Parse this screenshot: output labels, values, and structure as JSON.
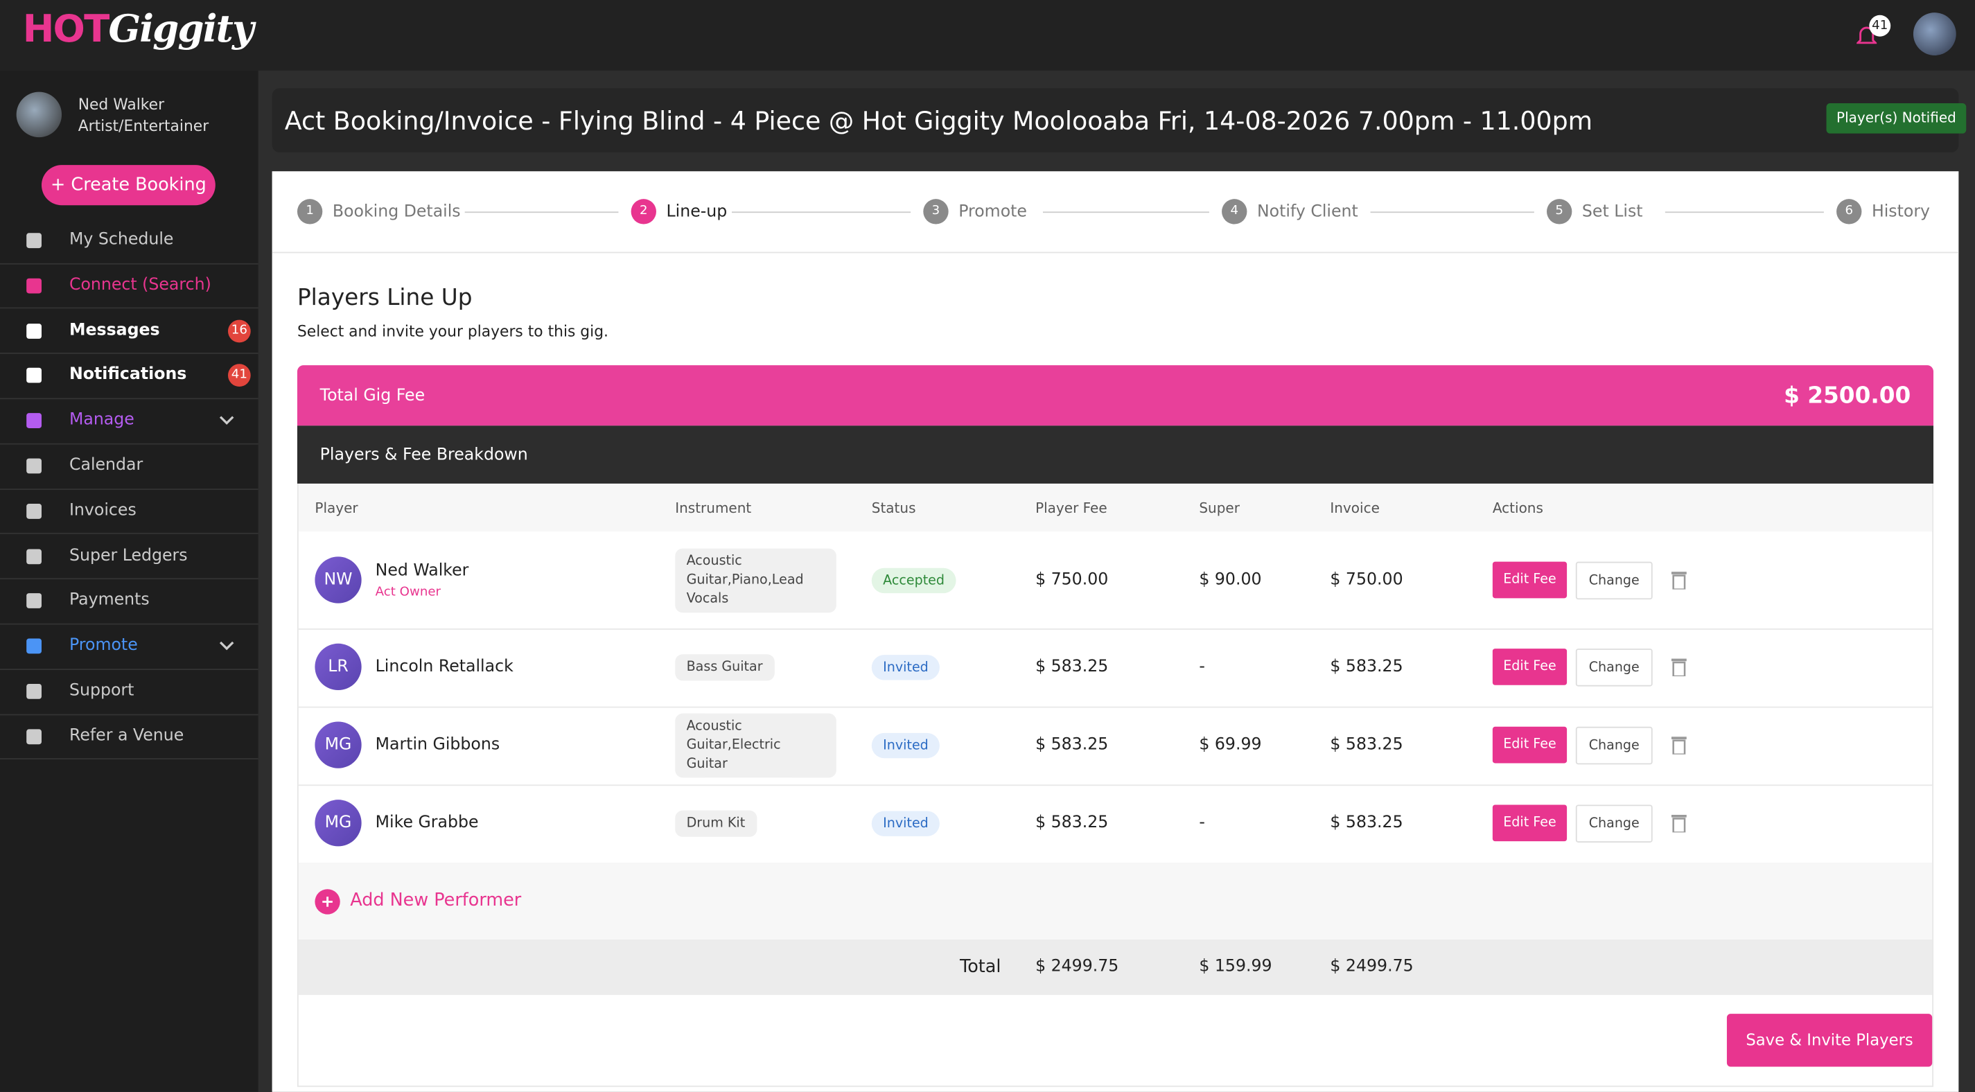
{
  "header": {
    "logo_hot": "HOT",
    "logo_rest": "Giggity",
    "notification_count": "41"
  },
  "user": {
    "name": "Ned Walker",
    "role": "Artist/Entertainer"
  },
  "sidebar": {
    "create_button": "+ Create Booking",
    "items": [
      {
        "label": "My Schedule"
      },
      {
        "label": "Connect (Search)"
      },
      {
        "label": "Messages",
        "badge": "16"
      },
      {
        "label": "Notifications",
        "badge": "41"
      },
      {
        "label": "Manage"
      },
      {
        "label": "Calendar"
      },
      {
        "label": "Invoices"
      },
      {
        "label": "Super Ledgers"
      },
      {
        "label": "Payments"
      },
      {
        "label": "Promote"
      },
      {
        "label": "Support"
      },
      {
        "label": "Refer a Venue"
      }
    ]
  },
  "page": {
    "title": "Act Booking/Invoice - Flying Blind - 4 Piece @ Hot Giggity Moolooaba Fri, 14-08-2026 7.00pm - 11.00pm",
    "status_badge": "Player(s) Notified"
  },
  "steps": [
    {
      "number": "1",
      "label": "Booking Details"
    },
    {
      "number": "2",
      "label": "Line-up"
    },
    {
      "number": "3",
      "label": "Promote"
    },
    {
      "number": "4",
      "label": "Notify Client"
    },
    {
      "number": "5",
      "label": "Set List"
    },
    {
      "number": "6",
      "label": "History"
    }
  ],
  "section": {
    "title": "Players Line Up",
    "subtitle": "Select and invite your players to this gig."
  },
  "fee_bar": {
    "label": "Total Gig Fee",
    "amount": "$ 2500.00"
  },
  "breakdown_title": "Players & Fee Breakdown",
  "table": {
    "columns": [
      "Player",
      "Instrument",
      "Status",
      "Player Fee",
      "Super",
      "Invoice",
      "Actions"
    ],
    "actions": {
      "edit": "Edit Fee",
      "change": "Change"
    },
    "rows": [
      {
        "initials": "NW",
        "name": "Ned Walker",
        "role": "Act Owner",
        "instrument": "Acoustic Guitar,Piano,Lead Vocals",
        "status": "Accepted",
        "player_fee": "$ 750.00",
        "super": "$ 90.00",
        "invoice": "$ 750.00"
      },
      {
        "initials": "LR",
        "name": "Lincoln Retallack",
        "instrument": "Bass Guitar",
        "status": "Invited",
        "player_fee": "$ 583.25",
        "super": "-",
        "invoice": "$ 583.25"
      },
      {
        "initials": "MG",
        "name": "Martin Gibbons",
        "instrument": "Acoustic Guitar,Electric Guitar",
        "status": "Invited",
        "player_fee": "$ 583.25",
        "super": "$ 69.99",
        "invoice": "$ 583.25"
      },
      {
        "initials": "MG",
        "name": "Mike Grabbe",
        "instrument": "Drum Kit",
        "status": "Invited",
        "player_fee": "$ 583.25",
        "super": "-",
        "invoice": "$ 583.25"
      }
    ]
  },
  "add_performer": "Add New Performer",
  "totals": {
    "label": "Total",
    "player_fee": "$ 2499.75",
    "super": "$ 159.99",
    "invoice": "$ 2499.75"
  },
  "save_button": "Save & Invite Players"
}
